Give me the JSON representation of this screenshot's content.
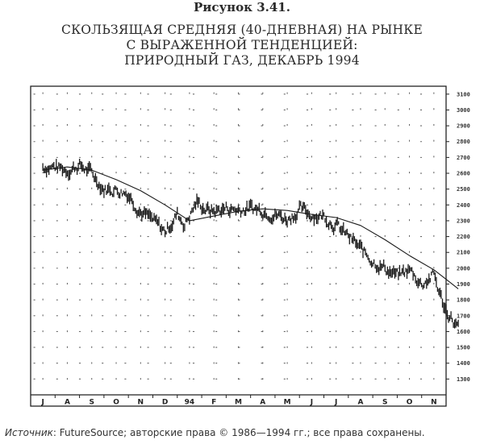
{
  "figure_label": "Рисунок 3.41.",
  "title_lines": [
    "СКОЛЬЗЯЩАЯ СРЕДНЯЯ (40-ДНЕВНАЯ) НА РЫНКЕ",
    "С ВЫРАЖЕННОЙ ТЕНДЕНЦИЕЙ:",
    "ПРИРОДНЫЙ ГАЗ, ДЕКАБРЬ 1994"
  ],
  "source": {
    "prefix": "Источник",
    "text": ": FutureSource; авторские права © 1986—1994 гг.; все права сохранены."
  },
  "chart_data": {
    "type": "line",
    "x_axis": {
      "tick_labels": [
        "J",
        "A",
        "S",
        "O",
        "N",
        "D",
        "94",
        "F",
        "M",
        "A",
        "M",
        "J",
        "J",
        "A",
        "S",
        "O",
        "N"
      ]
    },
    "y_axis": {
      "ylim": [
        1200,
        3150
      ],
      "tick_values": [
        3100,
        3000,
        2900,
        2800,
        2700,
        2600,
        2500,
        2400,
        2300,
        2200,
        2100,
        2000,
        1900,
        1800,
        1700,
        1600,
        1500,
        1400,
        1300
      ]
    },
    "grid": "dotted",
    "series": [
      {
        "kind": "price-bars",
        "x": [
          0.0,
          0.5,
          1.0,
          1.5,
          2.0,
          2.5,
          3.0,
          3.5,
          4.0,
          4.5,
          5.0,
          5.5,
          5.8,
          6.0,
          6.3,
          6.7,
          7.0,
          7.5,
          8.0,
          8.5,
          9.0,
          9.5,
          10.0,
          10.5,
          11.0,
          11.5,
          12.0,
          12.5,
          13.0,
          13.5,
          14.0,
          14.5,
          15.0,
          15.5,
          16.0,
          16.3,
          16.5,
          16.7,
          16.9,
          17.0
        ],
        "y": [
          2640,
          2640,
          2620,
          2650,
          2600,
          2500,
          2500,
          2470,
          2360,
          2300,
          2230,
          2340,
          2280,
          2330,
          2420,
          2370,
          2360,
          2380,
          2370,
          2380,
          2370,
          2340,
          2310,
          2370,
          2340,
          2330,
          2270,
          2200,
          2120,
          2050,
          2000,
          1950,
          1990,
          1900,
          1960,
          1810,
          1730,
          1690,
          1640,
          1620
        ]
      },
      {
        "kind": "moving-average-40",
        "x": [
          0.0,
          1.0,
          2.0,
          3.0,
          4.0,
          5.0,
          6.0,
          7.0,
          8.0,
          9.0,
          10.0,
          11.0,
          12.0,
          13.0,
          14.0,
          15.0,
          16.0,
          16.5,
          17.0
        ],
        "y": [
          2620,
          2640,
          2620,
          2560,
          2490,
          2400,
          2300,
          2330,
          2360,
          2375,
          2365,
          2340,
          2320,
          2270,
          2180,
          2080,
          1990,
          1930,
          1870
        ]
      }
    ]
  }
}
